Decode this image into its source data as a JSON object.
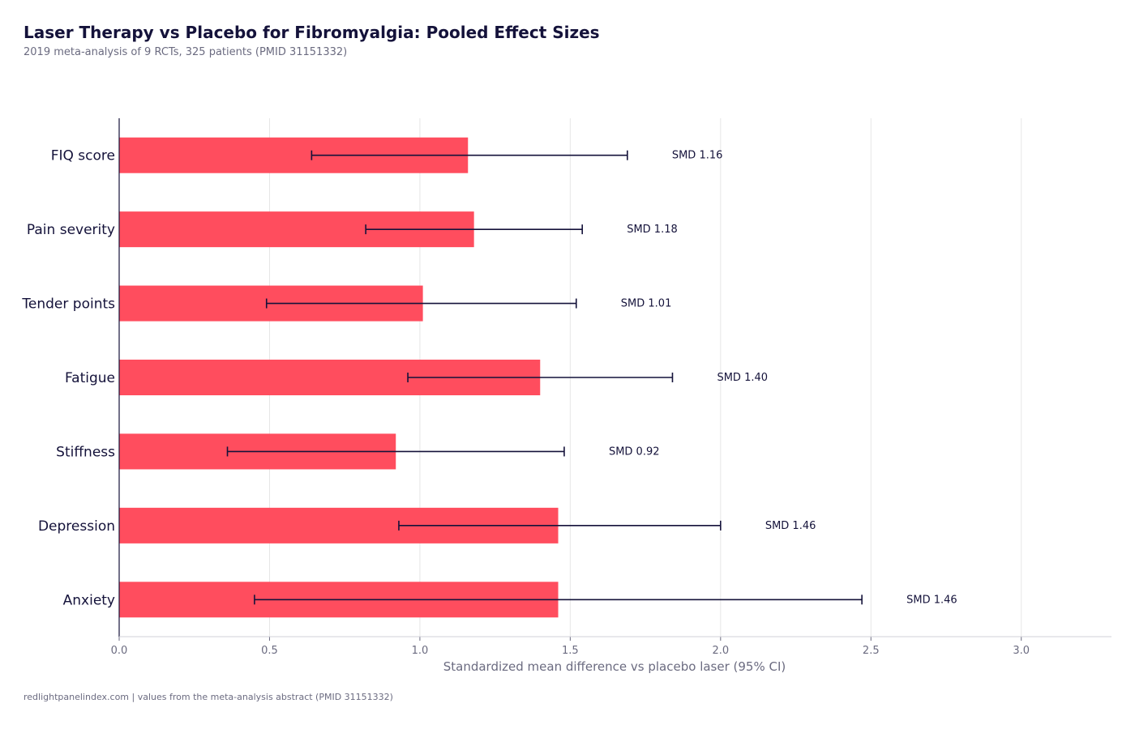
{
  "header": {
    "title": "Laser Therapy vs Placebo for Fibromyalgia: Pooled Effect Sizes",
    "subtitle": "2019 meta-analysis of 9 RCTs, 325 patients (PMID 31151332)"
  },
  "footer": {
    "source": "redlightpanelindex.com | values from the meta-analysis abstract (PMID 31151332)"
  },
  "colors": {
    "bar": "#ff4d5e",
    "error_bar": "#14123a",
    "grid": "#e6e6e6",
    "axis": "#14123a"
  },
  "chart_data": {
    "type": "bar",
    "orientation": "horizontal",
    "title": "Laser Therapy vs Placebo for Fibromyalgia: Pooled Effect Sizes",
    "xlabel": "Standardized mean difference vs placebo laser (95% CI)",
    "ylabel": "",
    "xlim": [
      0,
      3.3
    ],
    "xticks": [
      0.0,
      0.5,
      1.0,
      1.5,
      2.0,
      2.5,
      3.0
    ],
    "xtick_labels": [
      "0.0",
      "0.5",
      "1.0",
      "1.5",
      "2.0",
      "2.5",
      "3.0"
    ],
    "grid": "vertical",
    "categories": [
      "FIQ score",
      "Pain severity",
      "Tender points",
      "Fatigue",
      "Stiffness",
      "Depression",
      "Anxiety"
    ],
    "values": [
      1.16,
      1.18,
      1.01,
      1.4,
      0.92,
      1.46,
      1.46
    ],
    "ci_low": [
      0.64,
      0.82,
      0.49,
      0.96,
      0.36,
      0.93,
      0.45
    ],
    "ci_high": [
      1.69,
      1.54,
      1.52,
      1.84,
      1.48,
      2.0,
      2.47
    ],
    "data_labels": [
      "SMD 1.16",
      "SMD 1.18",
      "SMD 1.01",
      "SMD 1.40",
      "SMD 0.92",
      "SMD 1.46",
      "SMD 1.46"
    ]
  }
}
